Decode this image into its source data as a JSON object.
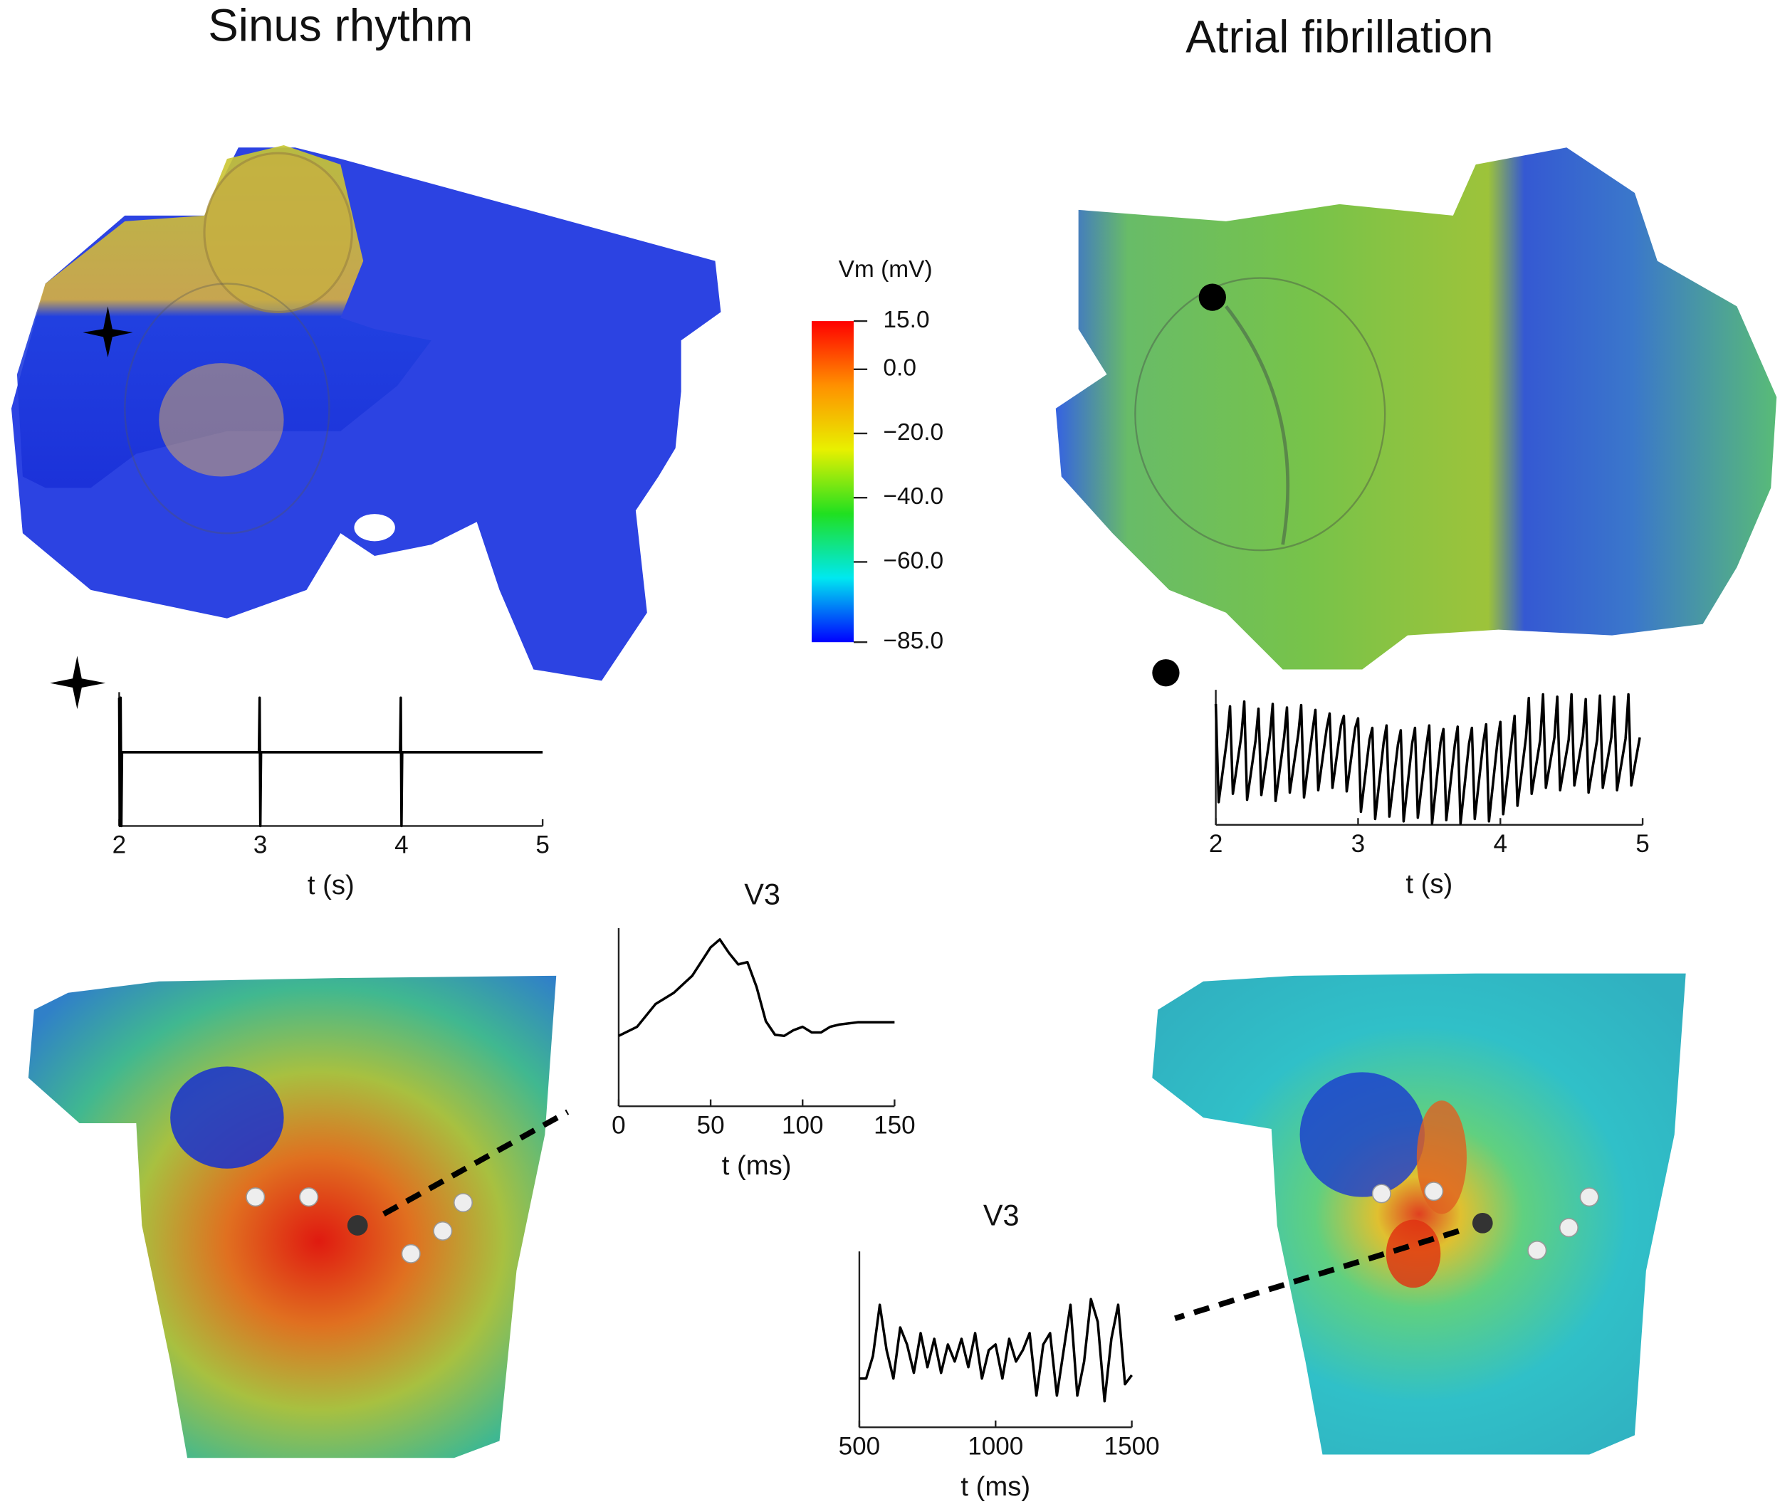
{
  "headings": [
    "Sinus rhythm",
    "Atrial fibrillation"
  ],
  "colorbar": {
    "label": "Vm (mV)",
    "ylim": [
      -85,
      15
    ],
    "yticks": [
      {
        "value": 15,
        "label": "15.0"
      },
      {
        "value": 0,
        "label": "0.0"
      },
      {
        "value": -20,
        "label": "−20.0"
      },
      {
        "value": -40,
        "label": "−40.0"
      },
      {
        "value": -60,
        "label": "−60.0"
      },
      {
        "value": -85,
        "label": "−85.0"
      }
    ],
    "colors": [
      "#ff0000",
      "#ff9000",
      "#e8f000",
      "#20e020",
      "#00e8f0",
      "#0000ff"
    ]
  },
  "chart_data": [
    {
      "type": "line",
      "xlabel": "t (s)",
      "color": "#000000",
      "xlim": [
        2,
        5
      ],
      "xticks": [
        2,
        3,
        4,
        5
      ],
      "x": [
        2,
        2.005,
        2.01,
        2.015,
        2.02,
        2.99,
        2.995,
        3,
        3.005,
        3.99,
        3.995,
        4,
        4.005,
        5
      ],
      "values": [
        48,
        -65,
        48,
        -65,
        0,
        0,
        48,
        -65,
        0,
        0,
        48,
        -65,
        0,
        0
      ]
    },
    {
      "type": "line",
      "xlabel": "t (s)",
      "color": "#000000",
      "xlim": [
        2,
        5
      ],
      "xticks": [
        2,
        3,
        4,
        5
      ],
      "x": [
        2,
        2.02,
        2.08,
        2.1,
        2.12,
        2.18,
        2.2,
        2.22,
        2.28,
        2.3,
        2.32,
        2.38,
        2.4,
        2.42,
        2.48,
        2.5,
        2.52,
        2.58,
        2.6,
        2.62,
        2.68,
        2.7,
        2.72,
        2.78,
        2.8,
        2.82,
        2.88,
        2.9,
        2.92,
        2.98,
        3,
        3.02,
        3.08,
        3.1,
        3.12,
        3.18,
        3.2,
        3.22,
        3.28,
        3.3,
        3.32,
        3.38,
        3.4,
        3.42,
        3.48,
        3.5,
        3.52,
        3.58,
        3.6,
        3.62,
        3.68,
        3.7,
        3.72,
        3.78,
        3.8,
        3.82,
        3.88,
        3.9,
        3.92,
        3.98,
        4,
        4.02,
        4.08,
        4.1,
        4.12,
        4.18,
        4.2,
        4.22,
        4.28,
        4.3,
        4.32,
        4.38,
        4.4,
        4.42,
        4.48,
        4.5,
        4.52,
        4.58,
        4.6,
        4.62,
        4.68,
        4.7,
        4.72,
        4.78,
        4.8,
        4.82,
        4.88,
        4.9,
        4.92,
        4.98
      ],
      "values": [
        100,
        18,
        72,
        98,
        25,
        74,
        102,
        20,
        70,
        96,
        24,
        73,
        100,
        19,
        72,
        97,
        26,
        75,
        99,
        22,
        78,
        95,
        28,
        80,
        92,
        30,
        82,
        90,
        27,
        80,
        88,
        10,
        70,
        80,
        4,
        68,
        82,
        6,
        66,
        78,
        2,
        67,
        80,
        5,
        65,
        82,
        0,
        68,
        79,
        3,
        66,
        81,
        0,
        67,
        80,
        4,
        68,
        83,
        2,
        69,
        85,
        8,
        70,
        90,
        15,
        72,
        105,
        25,
        70,
        108,
        30,
        72,
        106,
        28,
        70,
        108,
        32,
        73,
        104,
        26,
        70,
        107,
        30,
        72,
        106,
        28,
        71,
        108,
        32,
        72
      ]
    },
    {
      "type": "line",
      "title": "V3",
      "xlabel": "t (ms)",
      "color": "#000000",
      "xlim": [
        0,
        150
      ],
      "xticks": [
        0,
        50,
        100,
        150
      ],
      "x": [
        0,
        10,
        20,
        30,
        40,
        50,
        55,
        60,
        65,
        70,
        75,
        80,
        85,
        90,
        95,
        100,
        105,
        110,
        115,
        120,
        130,
        150
      ],
      "values": [
        62,
        70,
        90,
        100,
        115,
        140,
        147,
        135,
        125,
        127,
        105,
        75,
        63,
        62,
        67,
        70,
        65,
        65,
        70,
        72,
        74,
        74
      ]
    },
    {
      "type": "line",
      "title": "V3",
      "xlabel": "t (ms)",
      "color": "#000000",
      "xlim": [
        500,
        1500
      ],
      "xticks": [
        500,
        1000,
        1500
      ],
      "x": [
        500,
        525,
        550,
        575,
        600,
        625,
        650,
        675,
        700,
        725,
        750,
        775,
        800,
        825,
        850,
        875,
        900,
        925,
        950,
        975,
        1000,
        1025,
        1050,
        1075,
        1100,
        1125,
        1150,
        1175,
        1200,
        1225,
        1250,
        1275,
        1300,
        1325,
        1350,
        1375,
        1400,
        1425,
        1450,
        1475,
        1500
      ],
      "values": [
        43,
        43,
        63,
        108,
        68,
        43,
        88,
        73,
        48,
        83,
        53,
        78,
        48,
        73,
        58,
        78,
        53,
        83,
        43,
        68,
        73,
        43,
        78,
        58,
        68,
        83,
        28,
        73,
        83,
        28,
        68,
        108,
        28,
        58,
        113,
        93,
        23,
        78,
        108,
        38,
        46
      ]
    }
  ]
}
